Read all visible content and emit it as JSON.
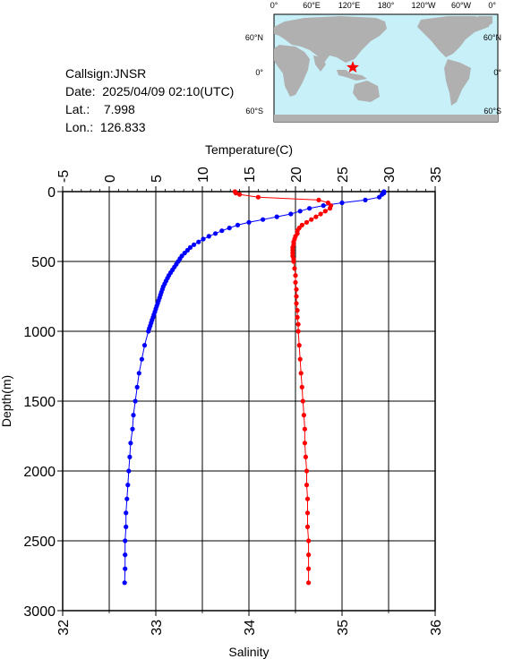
{
  "info": {
    "callsign_label": "Callsign:",
    "callsign": "JNSR",
    "date_label": "Date:",
    "date": "2025/04/09 02:10(UTC)",
    "lat_label": "Lat.:",
    "lat": "7.998",
    "lon_label": "Lon.:",
    "lon": "126.833"
  },
  "map": {
    "ocean_color": "#c8f0f8",
    "land_color": "#b0b0b0",
    "marker_color": "#ff0000",
    "marker_icon": "star-icon",
    "top_labels": [
      "0°",
      "60°E",
      "120°E",
      "180°",
      "120°W",
      "60°W",
      "0°"
    ],
    "right_labels": [
      "60°N",
      "0°",
      "60°S"
    ]
  },
  "chart_data": {
    "type": "line",
    "ylabel": "Depth(m)",
    "xlabel_top": "Temperature(C)",
    "xlabel_bottom": "Salinity",
    "ylim": [
      0,
      3000
    ],
    "y_ticks": [
      "0",
      "500",
      "1000",
      "1500",
      "2000",
      "2500",
      "3000"
    ],
    "y_tick_values": [
      0,
      500,
      1000,
      1500,
      2000,
      2500,
      3000
    ],
    "temp_lim": [
      -5,
      35
    ],
    "temp_ticks": [
      "-5",
      "0",
      "5",
      "10",
      "15",
      "20",
      "25",
      "30",
      "35"
    ],
    "temp_tick_values": [
      -5,
      0,
      5,
      10,
      15,
      20,
      25,
      30,
      35
    ],
    "sal_lim": [
      32,
      36
    ],
    "sal_ticks": [
      "32",
      "33",
      "34",
      "35",
      "36"
    ],
    "sal_tick_values": [
      32,
      33,
      34,
      35,
      36
    ],
    "grid": true,
    "series": [
      {
        "axis": "temperature",
        "color": "#0000ff",
        "depth": [
          0,
          10,
          20,
          40,
          60,
          80,
          100,
          120,
          140,
          160,
          180,
          200,
          220,
          240,
          260,
          280,
          300,
          320,
          340,
          360,
          380,
          400,
          420,
          440,
          460,
          480,
          500,
          520,
          540,
          560,
          580,
          600,
          620,
          640,
          660,
          680,
          700,
          720,
          740,
          760,
          780,
          800,
          820,
          840,
          860,
          880,
          900,
          920,
          940,
          960,
          980,
          1000,
          1100,
          1200,
          1300,
          1400,
          1500,
          1600,
          1700,
          1800,
          1900,
          2000,
          2100,
          2200,
          2300,
          2400,
          2500,
          2600,
          2700,
          2800
        ],
        "values": [
          29.5,
          29.5,
          29.3,
          29.0,
          27.5,
          25.0,
          23.0,
          21.5,
          20.5,
          19.5,
          18.0,
          16.5,
          15.0,
          13.8,
          12.9,
          12.1,
          11.4,
          10.7,
          10.1,
          9.6,
          9.1,
          8.7,
          8.4,
          8.1,
          7.8,
          7.6,
          7.4,
          7.2,
          7.0,
          6.8,
          6.6,
          6.4,
          6.25,
          6.1,
          5.95,
          5.8,
          5.7,
          5.6,
          5.5,
          5.4,
          5.3,
          5.2,
          5.1,
          5.0,
          4.9,
          4.8,
          4.7,
          4.6,
          4.5,
          4.4,
          4.3,
          4.2,
          3.8,
          3.5,
          3.2,
          3.0,
          2.8,
          2.6,
          2.5,
          2.3,
          2.2,
          2.1,
          2.0,
          1.9,
          1.8,
          1.8,
          1.7,
          1.7,
          1.7,
          1.65
        ]
      },
      {
        "axis": "salinity",
        "color": "#ff0000",
        "depth": [
          0,
          10,
          20,
          40,
          60,
          80,
          100,
          120,
          140,
          160,
          180,
          200,
          220,
          240,
          260,
          280,
          300,
          320,
          340,
          360,
          380,
          400,
          420,
          440,
          460,
          480,
          500,
          550,
          600,
          650,
          700,
          750,
          800,
          850,
          900,
          950,
          1000,
          1100,
          1200,
          1300,
          1400,
          1500,
          1600,
          1700,
          1800,
          1900,
          2000,
          2100,
          2200,
          2300,
          2400,
          2500,
          2600,
          2700,
          2800
        ],
        "values": [
          33.85,
          33.86,
          33.9,
          34.1,
          34.75,
          34.85,
          34.88,
          34.87,
          34.82,
          34.77,
          34.72,
          34.67,
          34.62,
          34.57,
          34.54,
          34.52,
          34.52,
          34.5,
          34.49,
          34.48,
          34.48,
          34.47,
          34.47,
          34.47,
          34.47,
          34.48,
          34.48,
          34.49,
          34.5,
          34.5,
          34.51,
          34.51,
          34.51,
          34.52,
          34.52,
          34.53,
          34.53,
          34.54,
          34.55,
          34.56,
          34.57,
          34.58,
          34.59,
          34.6,
          34.6,
          34.61,
          34.62,
          34.62,
          34.63,
          34.63,
          34.63,
          34.64,
          34.64,
          34.64,
          34.64
        ]
      }
    ]
  }
}
